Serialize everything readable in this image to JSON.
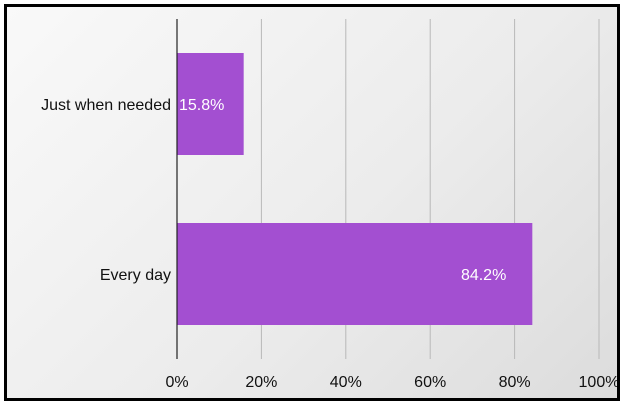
{
  "chart_data": {
    "type": "bar",
    "orientation": "horizontal",
    "categories": [
      "Just when needed",
      "Every day"
    ],
    "values": [
      15.8,
      84.2
    ],
    "data_labels": [
      "15.8%",
      "84.2%"
    ],
    "xlim": [
      0,
      100
    ],
    "x_ticks": [
      0,
      20,
      40,
      60,
      80,
      100
    ],
    "x_tick_labels": [
      "0%",
      "20%",
      "40%",
      "60%",
      "80%",
      "100%"
    ],
    "grid": true,
    "legend": "none",
    "bar_color": "#a34fd1",
    "title": "",
    "xlabel": "",
    "ylabel": ""
  }
}
